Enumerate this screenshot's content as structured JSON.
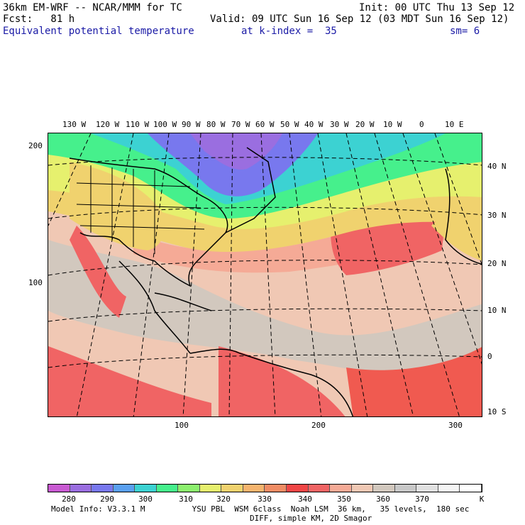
{
  "header": {
    "model_line": "36km EM-WRF -- NCAR/MMM for TC",
    "init_line": "Init: 00 UTC Thu 13 Sep 12",
    "fcst_line": "Fcst:   81 h",
    "valid_line": "Valid: 09 UTC Sun 16 Sep 12 (03 MDT Sun 16 Sep 12)",
    "field_name": "Equivalent potential temperature",
    "k_index": "at k-index =  35",
    "smoothing": "sm= 6"
  },
  "map": {
    "lon_labels_top": [
      "130 W",
      "120 W",
      "110 W",
      "100 W",
      "90 W",
      "80 W",
      "70 W",
      "60 W",
      "50 W",
      "40 W",
      "30 W",
      "20 W",
      "10 W",
      "0",
      "10 E"
    ],
    "lat_labels_right": [
      "40 N",
      "30 N",
      "20 N",
      "10 N",
      "0",
      "10 S"
    ],
    "grid_y_labels_left": [
      "200",
      "100"
    ],
    "grid_x_labels_bottom": [
      "100",
      "200",
      "300"
    ]
  },
  "colorbar": {
    "labels": [
      "280",
      "290",
      "300",
      "310",
      "320",
      "330",
      "340",
      "350",
      "360",
      "370",
      "K"
    ],
    "colors": [
      "#c85ad2",
      "#9a6ee0",
      "#7878ee",
      "#5aa0f0",
      "#3cd2d2",
      "#46f08c",
      "#8cf06e",
      "#e6f06e",
      "#f0d26e",
      "#f5b46e",
      "#f08c64",
      "#f04646",
      "#f06464",
      "#f5aa96",
      "#f0c8b4",
      "#d2c8be",
      "#c8c8c8",
      "#e1e1e1",
      "#f5f5f5",
      "#ffffff"
    ]
  },
  "footer": {
    "line1": "Model Info: V3.3.1 M          YSU PBL  WSM 6class  Noah LSM  36 km,   35 levels,  180 sec",
    "line2": "DIFF, simple KM, 2D Smagor"
  }
}
